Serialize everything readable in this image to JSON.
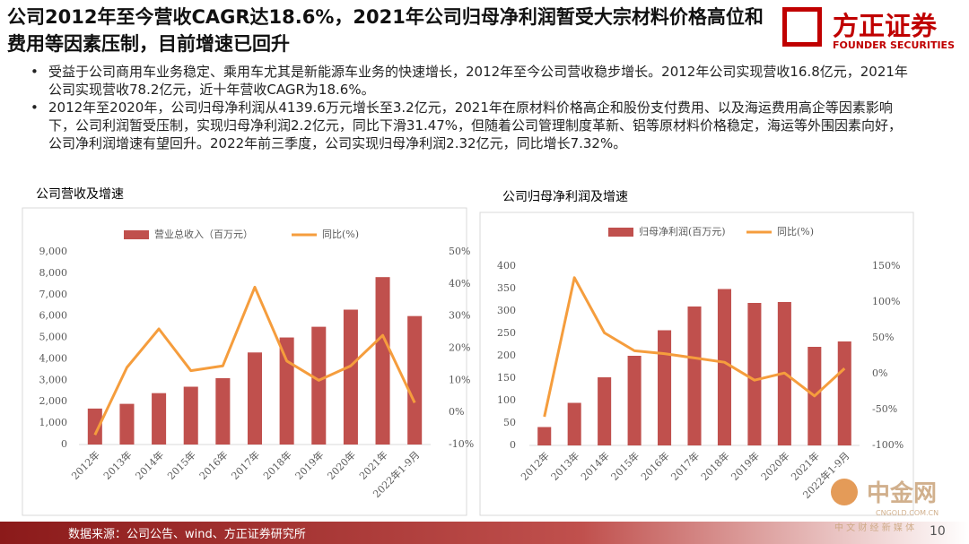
{
  "header": {
    "title": "公司2012年至今营收CAGR达18.6%，2021年公司归母净利润暂受大宗材料价格高位和费用等因素压制，目前增速已回升",
    "logo": "方正证券",
    "logo_en": "FOUNDER SECURITIES"
  },
  "bullets": [
    "受益于公司商用车业务稳定、乘用车尤其是新能源车业务的快速增长，2012年至今公司营收稳步增长。2012年公司实现营收16.8亿元，2021年公司实现营收78.2亿元，近十年营收CAGR为18.6%。",
    "2012年至2020年，公司归母净利润从4139.6万元增长至3.2亿元，2021年在原材料价格高企和股份支付费用、以及海运费用高企等因素影响下，公司利润暂受压制，实现归母净利润2.2亿元，同比下滑31.47%，但随着公司管理制度革新、铝等原材料价格稳定，海运等外围因素向好，公司净利润增速有望回升。2022年前三季度，公司实现归母净利润2.32亿元，同比增长7.32%。"
  ],
  "chart_data": [
    {
      "type": "bar",
      "title": "公司营收及增速",
      "categories": [
        "2012年",
        "2013年",
        "2014年",
        "2015年",
        "2016年",
        "2017年",
        "2018年",
        "2019年",
        "2020年",
        "2021年",
        "2022年1-9月"
      ],
      "series": [
        {
          "name": "营业总收入（百万元）",
          "color": "#c0504d",
          "type": "bar",
          "values": [
            1680,
            1900,
            2400,
            2700,
            3100,
            4300,
            5000,
            5500,
            6300,
            7820,
            6000
          ]
        },
        {
          "name": "同比(%)",
          "color": "#f59d3d",
          "type": "line",
          "axis": "y2",
          "values": [
            -7,
            14,
            26,
            13,
            14.5,
            39,
            16,
            10,
            14.5,
            24,
            3
          ]
        }
      ],
      "ylim": [
        0,
        9000
      ],
      "yticks": [
        0,
        {
          "value": 1000,
          "label": "1,000"
        },
        {
          "value": 2000,
          "label": "2,000"
        },
        {
          "value": 3000,
          "label": "3,000"
        },
        {
          "value": 4000,
          "label": "4,000"
        },
        {
          "value": 5000,
          "label": "5,000"
        },
        {
          "value": 6000,
          "label": "6,000"
        },
        {
          "value": 7000,
          "label": "7,000"
        },
        {
          "value": 8000,
          "label": "8,000"
        },
        {
          "value": 9000,
          "label": "9,000"
        }
      ],
      "y2lim": [
        -10,
        50
      ],
      "y2ticks": [
        {
          "value": -10,
          "label": "-10%"
        },
        {
          "value": 0,
          "label": "0%"
        },
        {
          "value": 10,
          "label": "10%"
        },
        {
          "value": 20,
          "label": "20%"
        },
        {
          "value": 30,
          "label": "30%"
        },
        {
          "value": 40,
          "label": "40%"
        },
        {
          "value": 50,
          "label": "50%"
        }
      ]
    },
    {
      "type": "bar",
      "title": "公司归母净利润及增速",
      "categories": [
        "2012年",
        "2013年",
        "2014年",
        "2015年",
        "2016年",
        "2017年",
        "2018年",
        "2019年",
        "2020年",
        "2021年",
        "2022年1-9月"
      ],
      "series": [
        {
          "name": "归母净利润(百万元)",
          "color": "#c0504d",
          "type": "bar",
          "values": [
            41,
            95,
            152,
            200,
            257,
            310,
            349,
            318,
            320,
            220,
            232
          ]
        },
        {
          "name": "同比(%)",
          "color": "#f59d3d",
          "type": "line",
          "axis": "y2",
          "values": [
            -60,
            134,
            57,
            32,
            28,
            22,
            16,
            -9,
            1,
            -31,
            7.32
          ]
        }
      ],
      "ylim": [
        0,
        400
      ],
      "yticks": [
        0,
        50,
        100,
        150,
        200,
        250,
        300,
        350,
        400
      ],
      "y2lim": [
        -100,
        150
      ],
      "y2ticks": [
        {
          "value": -100,
          "label": "-100%"
        },
        {
          "value": -50,
          "label": "-50%"
        },
        {
          "value": 0,
          "label": "0%"
        },
        {
          "value": 50,
          "label": "50%"
        },
        {
          "value": 100,
          "label": "100%"
        },
        {
          "value": 150,
          "label": "150%"
        }
      ]
    }
  ],
  "footer": {
    "source": "数据来源：公司公告、wind、方正证券研究所",
    "page": "10"
  },
  "watermark": {
    "name": "中金网",
    "domain": "CNGOLD.COM.CN",
    "slogan": "中 文 财 经 新 媒 体"
  }
}
